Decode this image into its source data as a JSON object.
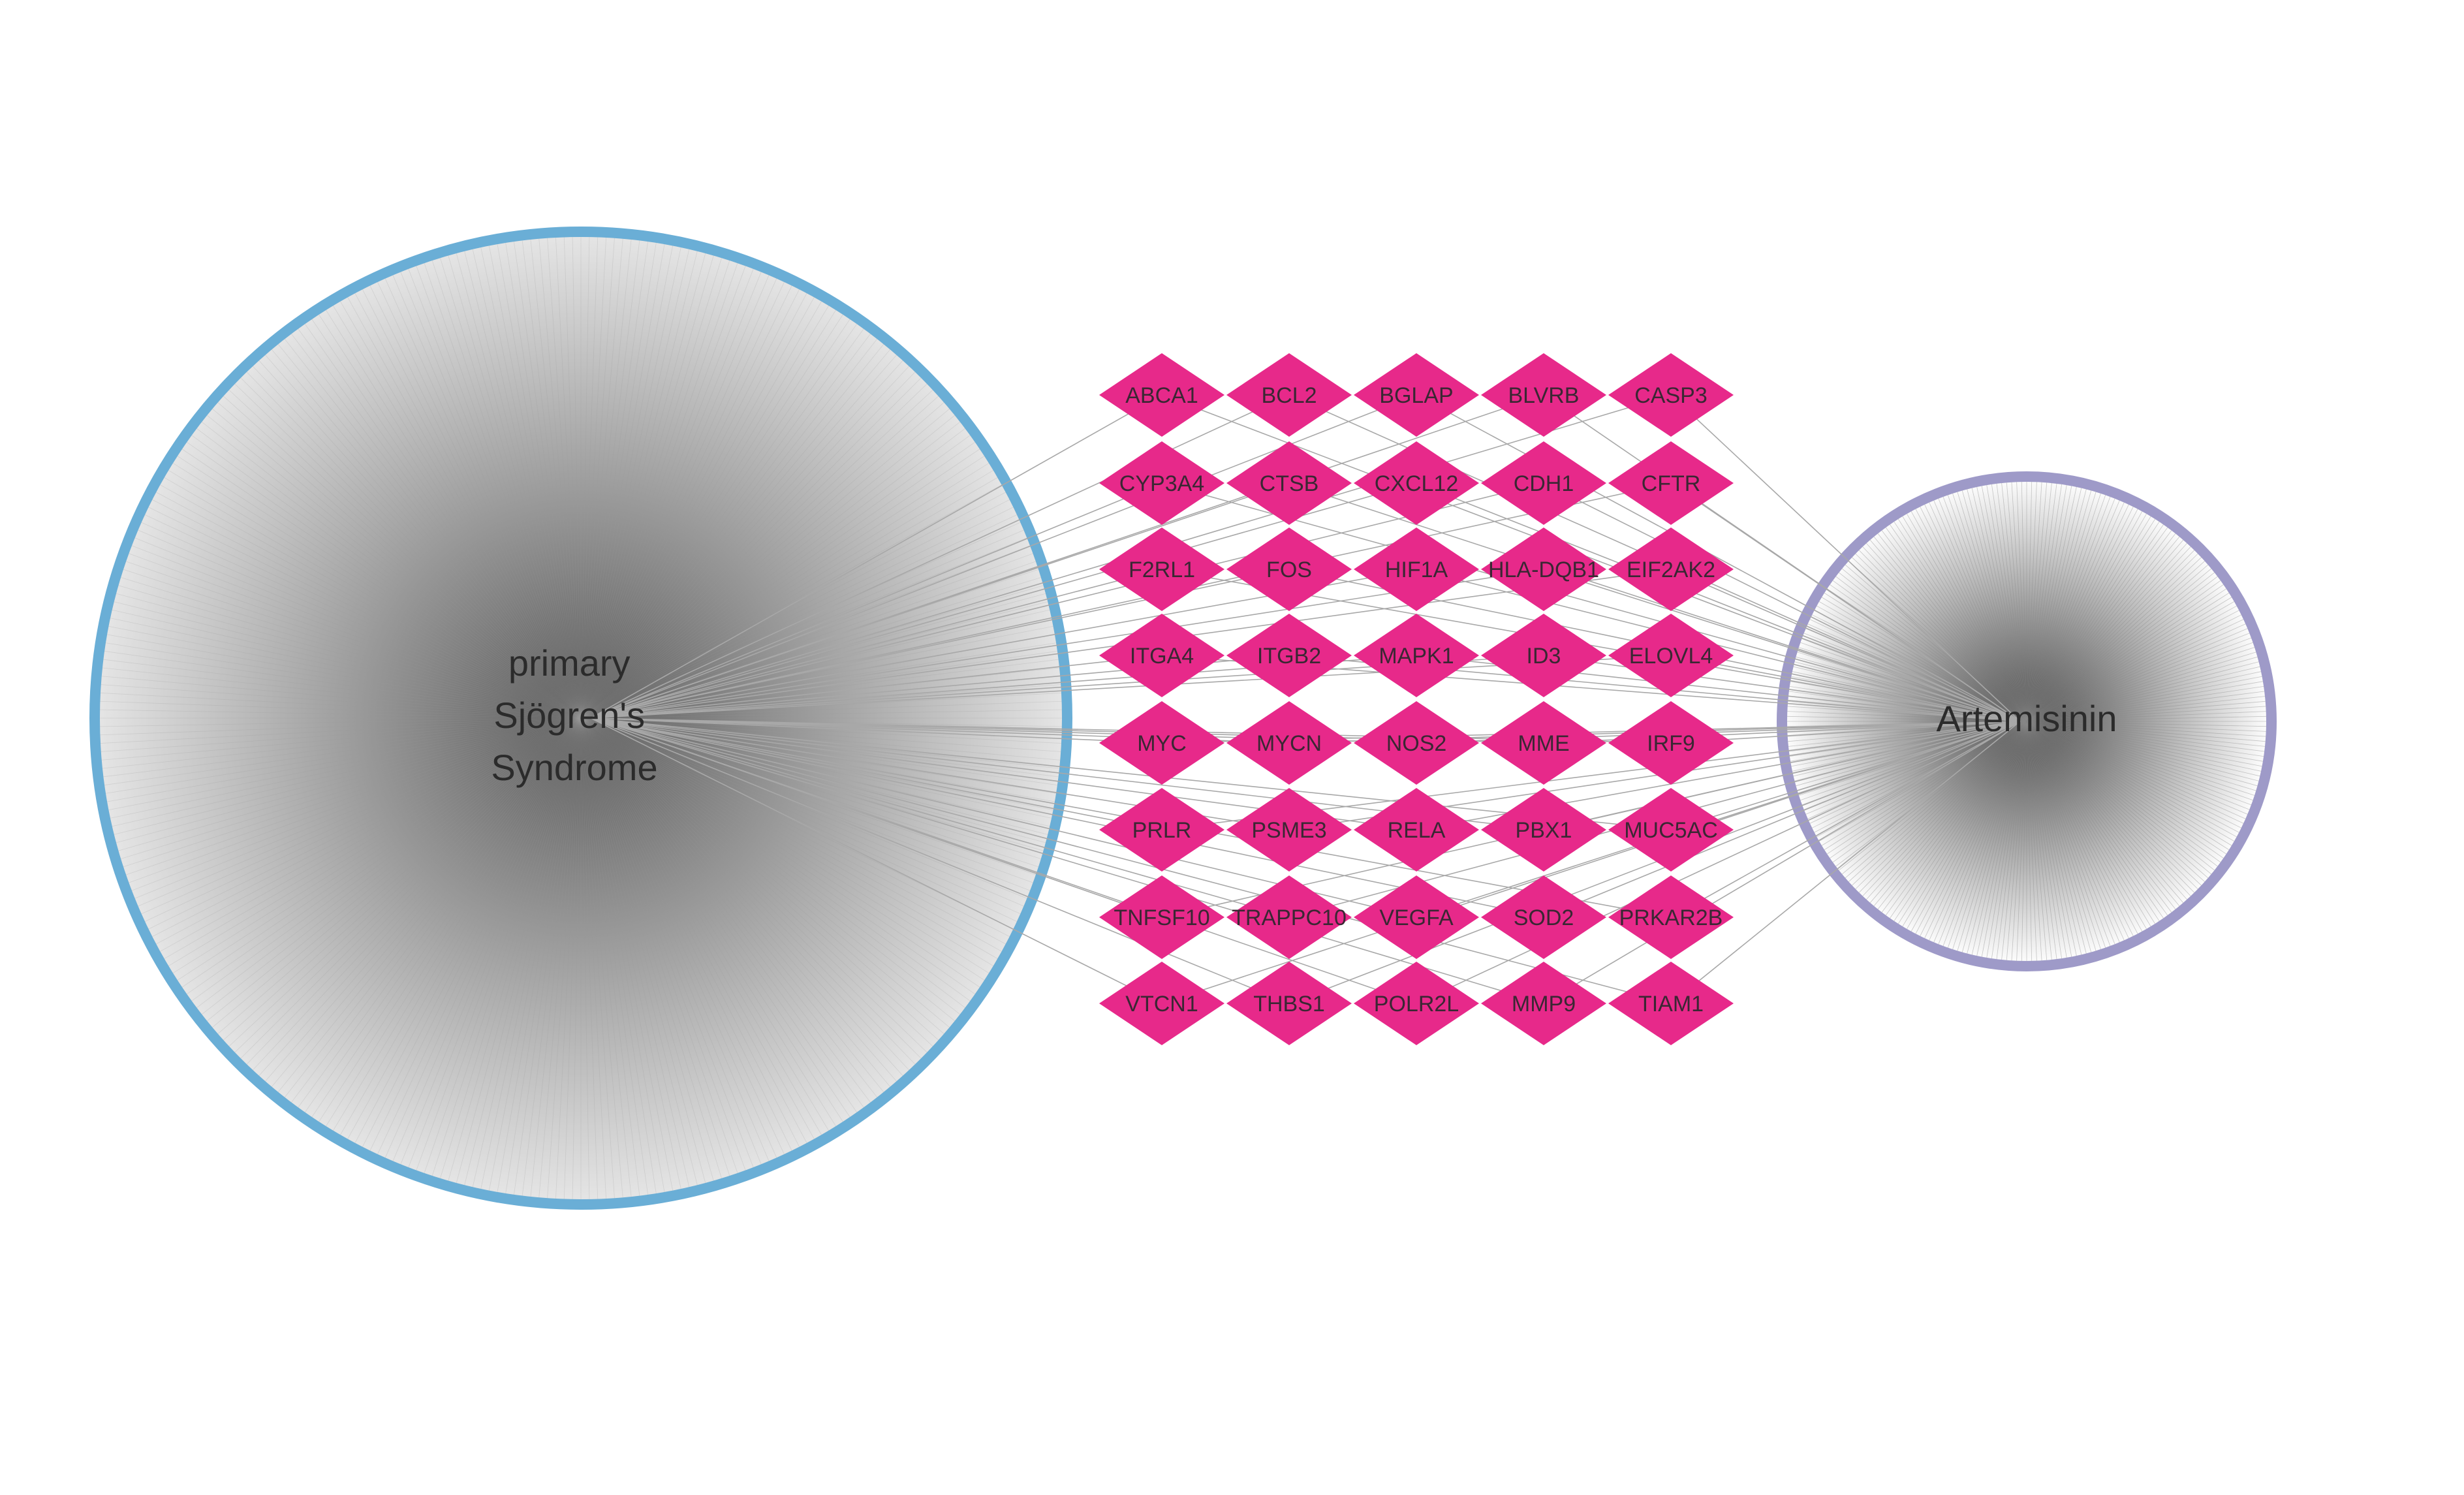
{
  "disease_node": {
    "label_lines": [
      "primary",
      "Sjögren's",
      "Syndrome"
    ],
    "border_color": "#6aaed6",
    "fill_center": "#5a5a5a",
    "fill_edge": "#e6e6e6"
  },
  "drug_node": {
    "label": "Artemisinin",
    "border_color": "#9e9ac8",
    "fill_center": "#4a4a4a",
    "fill_edge": "#ffffff"
  },
  "target_style": {
    "color": "#e7298a",
    "edge_color": "#a8a8a8"
  },
  "targets": [
    [
      "ABCA1",
      "BCL2",
      "BGLAP",
      "BLVRB",
      "CASP3"
    ],
    [
      "CYP3A4",
      "CTSB",
      "CXCL12",
      "CDH1",
      "CFTR"
    ],
    [
      "F2RL1",
      "FOS",
      "HIF1A",
      "HLA-DQB1",
      "EIF2AK2"
    ],
    [
      "ITGA4",
      "ITGB2",
      "MAPK1",
      "ID3",
      "ELOVL4"
    ],
    [
      "MYC",
      "MYCN",
      "NOS2",
      "MME",
      "IRF9"
    ],
    [
      "PRLR",
      "PSME3",
      "RELA",
      "PBX1",
      "MUC5AC"
    ],
    [
      "TNFSF10",
      "TRAPPC10",
      "VEGFA",
      "SOD2",
      "PRKAR2B"
    ],
    [
      "VTCN1",
      "THBS1",
      "POLR2L",
      "MMP9",
      "TIAM1"
    ]
  ]
}
